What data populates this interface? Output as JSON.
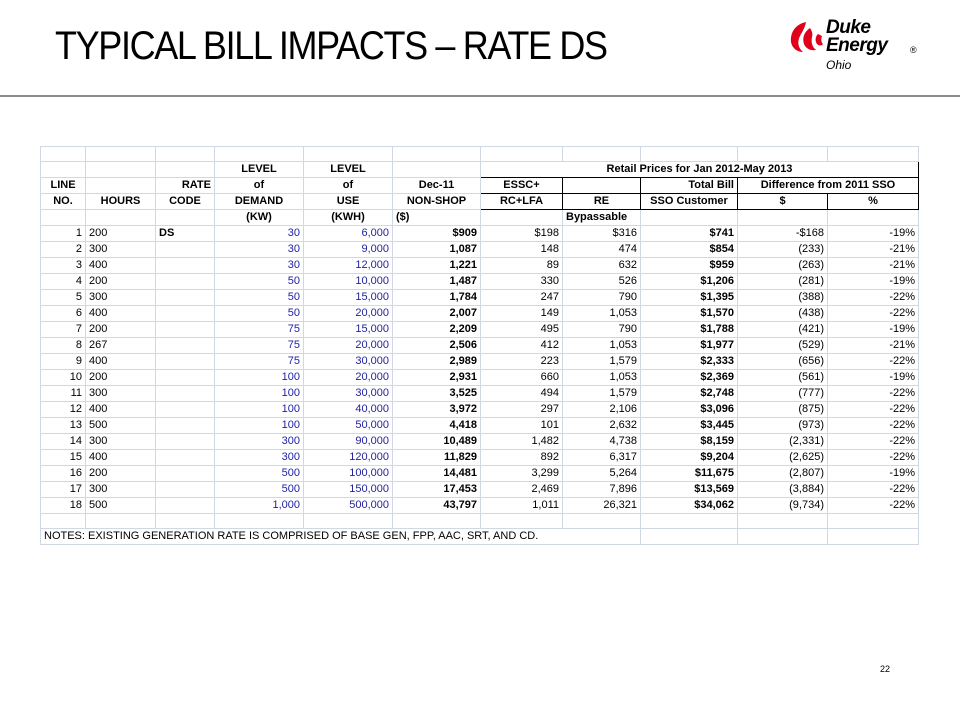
{
  "slide": {
    "title": "TYPICAL BILL IMPACTS – RATE DS",
    "page_number": "22"
  },
  "logo": {
    "line1": "Duke",
    "line2": "Energy",
    "reg": "®",
    "region": "Ohio"
  },
  "table": {
    "group_header": "Retail Prices for Jan 2012-May 2013",
    "header_row1": {
      "level_demand": "LEVEL",
      "level_use": "LEVEL"
    },
    "header_row2": {
      "line": "LINE",
      "rate": "RATE",
      "of_demand": "of",
      "of_use": "of",
      "dec": "Dec-11",
      "essc": "ESSC+",
      "total_bill": "Total Bill",
      "difference": "Difference from 2011 SSO"
    },
    "header_row3": {
      "no": "NO.",
      "hours": "HOURS",
      "code": "CODE",
      "demand": "DEMAND",
      "use": "USE",
      "non_shop": "NON-SHOP",
      "rc_lfa": "RC+LFA",
      "re": "RE",
      "sso_customer": "SSO Customer",
      "dollar": "$",
      "percent": "%"
    },
    "header_row4": {
      "kw": "(KW)",
      "kwh": "(KWH)",
      "usd": "($)",
      "bypassable": "Bypassable"
    },
    "rows": [
      {
        "line": "1",
        "hours": "200",
        "code": "DS",
        "demand": "30",
        "use": "6,000",
        "nonshop": "$909",
        "essc": "$198",
        "re": "$316",
        "total": "$741",
        "diff": "-$168",
        "pct": "-19%"
      },
      {
        "line": "2",
        "hours": "300",
        "code": "",
        "demand": "30",
        "use": "9,000",
        "nonshop": "1,087",
        "essc": "148",
        "re": "474",
        "total": "$854",
        "diff": "(233)",
        "pct": "-21%"
      },
      {
        "line": "3",
        "hours": "400",
        "code": "",
        "demand": "30",
        "use": "12,000",
        "nonshop": "1,221",
        "essc": "89",
        "re": "632",
        "total": "$959",
        "diff": "(263)",
        "pct": "-21%"
      },
      {
        "line": "4",
        "hours": "200",
        "code": "",
        "demand": "50",
        "use": "10,000",
        "nonshop": "1,487",
        "essc": "330",
        "re": "526",
        "total": "$1,206",
        "diff": "(281)",
        "pct": "-19%"
      },
      {
        "line": "5",
        "hours": "300",
        "code": "",
        "demand": "50",
        "use": "15,000",
        "nonshop": "1,784",
        "essc": "247",
        "re": "790",
        "total": "$1,395",
        "diff": "(388)",
        "pct": "-22%"
      },
      {
        "line": "6",
        "hours": "400",
        "code": "",
        "demand": "50",
        "use": "20,000",
        "nonshop": "2,007",
        "essc": "149",
        "re": "1,053",
        "total": "$1,570",
        "diff": "(438)",
        "pct": "-22%"
      },
      {
        "line": "7",
        "hours": "200",
        "code": "",
        "demand": "75",
        "use": "15,000",
        "nonshop": "2,209",
        "essc": "495",
        "re": "790",
        "total": "$1,788",
        "diff": "(421)",
        "pct": "-19%"
      },
      {
        "line": "8",
        "hours": "267",
        "code": "",
        "demand": "75",
        "use": "20,000",
        "nonshop": "2,506",
        "essc": "412",
        "re": "1,053",
        "total": "$1,977",
        "diff": "(529)",
        "pct": "-21%"
      },
      {
        "line": "9",
        "hours": "400",
        "code": "",
        "demand": "75",
        "use": "30,000",
        "nonshop": "2,989",
        "essc": "223",
        "re": "1,579",
        "total": "$2,333",
        "diff": "(656)",
        "pct": "-22%"
      },
      {
        "line": "10",
        "hours": "200",
        "code": "",
        "demand": "100",
        "use": "20,000",
        "nonshop": "2,931",
        "essc": "660",
        "re": "1,053",
        "total": "$2,369",
        "diff": "(561)",
        "pct": "-19%"
      },
      {
        "line": "11",
        "hours": "300",
        "code": "",
        "demand": "100",
        "use": "30,000",
        "nonshop": "3,525",
        "essc": "494",
        "re": "1,579",
        "total": "$2,748",
        "diff": "(777)",
        "pct": "-22%"
      },
      {
        "line": "12",
        "hours": "400",
        "code": "",
        "demand": "100",
        "use": "40,000",
        "nonshop": "3,972",
        "essc": "297",
        "re": "2,106",
        "total": "$3,096",
        "diff": "(875)",
        "pct": "-22%"
      },
      {
        "line": "13",
        "hours": "500",
        "code": "",
        "demand": "100",
        "use": "50,000",
        "nonshop": "4,418",
        "essc": "101",
        "re": "2,632",
        "total": "$3,445",
        "diff": "(973)",
        "pct": "-22%"
      },
      {
        "line": "14",
        "hours": "300",
        "code": "",
        "demand": "300",
        "use": "90,000",
        "nonshop": "10,489",
        "essc": "1,482",
        "re": "4,738",
        "total": "$8,159",
        "diff": "(2,331)",
        "pct": "-22%"
      },
      {
        "line": "15",
        "hours": "400",
        "code": "",
        "demand": "300",
        "use": "120,000",
        "nonshop": "11,829",
        "essc": "892",
        "re": "6,317",
        "total": "$9,204",
        "diff": "(2,625)",
        "pct": "-22%"
      },
      {
        "line": "16",
        "hours": "200",
        "code": "",
        "demand": "500",
        "use": "100,000",
        "nonshop": "14,481",
        "essc": "3,299",
        "re": "5,264",
        "total": "$11,675",
        "diff": "(2,807)",
        "pct": "-19%"
      },
      {
        "line": "17",
        "hours": "300",
        "code": "",
        "demand": "500",
        "use": "150,000",
        "nonshop": "17,453",
        "essc": "2,469",
        "re": "7,896",
        "total": "$13,569",
        "diff": "(3,884)",
        "pct": "-22%"
      },
      {
        "line": "18",
        "hours": "500",
        "code": "",
        "demand": "1,000",
        "use": "500,000",
        "nonshop": "43,797",
        "essc": "1,011",
        "re": "26,321",
        "total": "$34,062",
        "diff": "(9,734)",
        "pct": "-22%"
      }
    ],
    "notes": "NOTES: EXISTING GENERATION RATE IS COMPRISED OF BASE GEN, FPP, AAC, SRT, AND CD."
  }
}
